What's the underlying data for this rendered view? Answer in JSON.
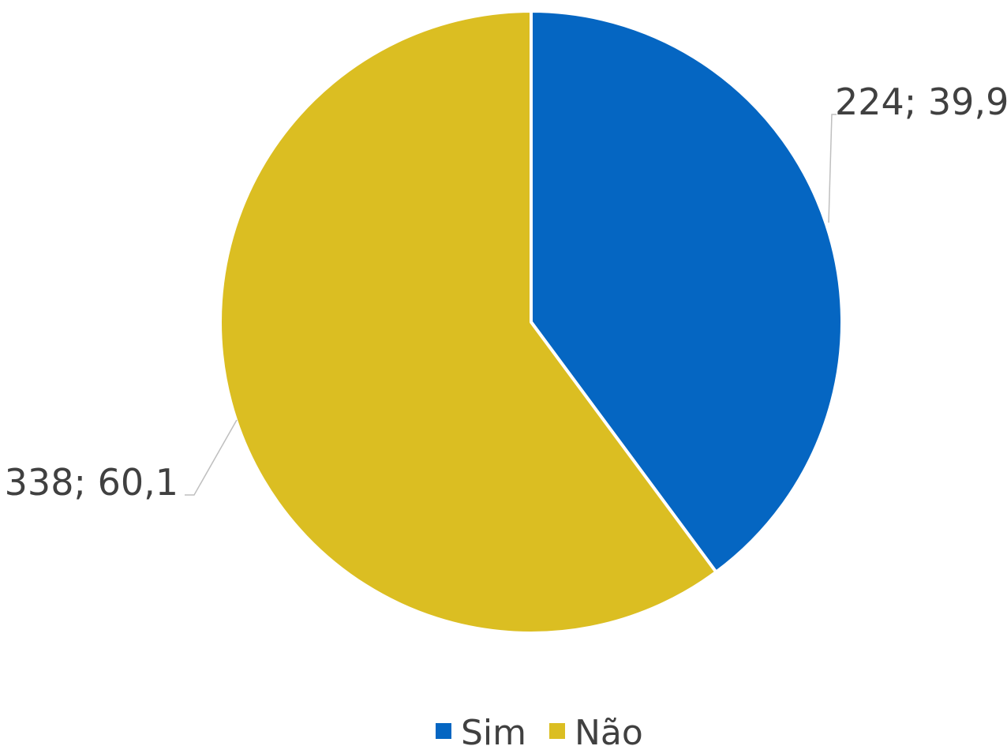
{
  "chart_data": {
    "type": "pie",
    "title": "",
    "legend_position": "bottom",
    "slices": [
      {
        "name": "Sim",
        "value": 224,
        "percent": 39.9,
        "label": "224; 39,9",
        "color": "#0566C2"
      },
      {
        "name": "Não",
        "value": 338,
        "percent": 60.1,
        "label": "338; 60,1",
        "color": "#DBBE22"
      }
    ]
  }
}
